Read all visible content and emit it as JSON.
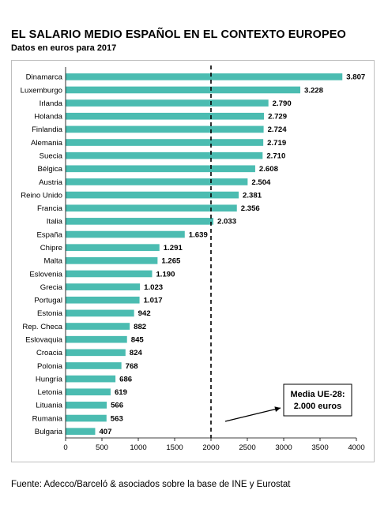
{
  "header": {
    "title": "EL SALARIO MEDIO ESPAÑOL EN EL CONTEXTO EUROPEO",
    "subtitle": "Datos en euros para 2017"
  },
  "footer": {
    "source": "Fuente: Adecco/Barceló & asociados sobre la base de INE y Eurostat"
  },
  "chart_data": {
    "type": "bar",
    "orientation": "horizontal",
    "title": "EL SALARIO MEDIO ESPAÑOL EN EL CONTEXTO EUROPEO",
    "subtitle": "Datos en euros para 2017",
    "categories": [
      "Dinamarca",
      "Luxemburgo",
      "Irlanda",
      "Holanda",
      "Finlandia",
      "Alemania",
      "Suecia",
      "Bélgica",
      "Austria",
      "Reino Unido",
      "Francia",
      "Italia",
      "España",
      "Chipre",
      "Malta",
      "Eslovenia",
      "Grecia",
      "Portugal",
      "Estonia",
      "Rep. Checa",
      "Eslovaquia",
      "Croacia",
      "Polonia",
      "Hungría",
      "Letonia",
      "Lituania",
      "Rumania",
      "Bulgaria"
    ],
    "values": [
      3807,
      3228,
      2790,
      2729,
      2724,
      2719,
      2710,
      2608,
      2504,
      2381,
      2356,
      2033,
      1639,
      1291,
      1265,
      1190,
      1023,
      1017,
      942,
      882,
      845,
      824,
      768,
      686,
      619,
      566,
      563,
      407
    ],
    "value_labels": [
      "3.807",
      "3.228",
      "2.790",
      "2.729",
      "2.724",
      "2.719",
      "2.710",
      "2.608",
      "2.504",
      "2.381",
      "2.356",
      "2.033",
      "1.639",
      "1.291",
      "1.265",
      "1.190",
      "1.023",
      "1.017",
      "942",
      "882",
      "845",
      "824",
      "768",
      "686",
      "619",
      "566",
      "563",
      "407"
    ],
    "xlim": [
      0,
      4000
    ],
    "xticks": [
      0,
      500,
      1000,
      1500,
      2000,
      2500,
      3000,
      3500,
      4000
    ],
    "grid": false,
    "bar_color": "#4bbcb1",
    "reference_line": {
      "value": 2000,
      "style": "dashed",
      "annotation_line1": "Media UE-28:",
      "annotation_line2": "2.000 euros"
    }
  }
}
